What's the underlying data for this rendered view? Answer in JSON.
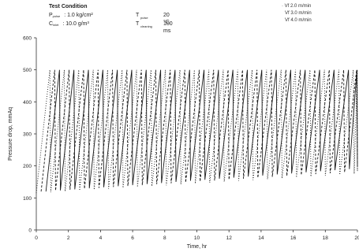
{
  "test_condition": {
    "title": "Test Condition",
    "rows": [
      {
        "sym1": "P",
        "sub1": "pulse",
        "val1": ": 1.0 kg/cm²",
        "sym2": "T",
        "sub2": "pulse",
        "val2": "20 °C"
      },
      {
        "sym1": "C",
        "sub1": "inlet",
        "val1": ": 10.0 g/m³",
        "sym2": "T",
        "sub2": "cleaning",
        "val2": "100 ms"
      }
    ]
  },
  "chart_data": {
    "type": "line",
    "xlabel": "Time, hr",
    "ylabel": "Pressure drop, mmAq",
    "xlim": [
      0,
      20
    ],
    "ylim": [
      0,
      600
    ],
    "xticks": [
      "0",
      "2",
      "4",
      "6",
      "8",
      "10",
      "12",
      "14",
      "16",
      "18",
      "20"
    ],
    "yticks": [
      "0",
      "100",
      "200",
      "300",
      "400",
      "500",
      "600"
    ],
    "grid": false,
    "legend_position": "top-right",
    "series": [
      {
        "name": "Vf 2.0 m/min",
        "style": "dotted",
        "peak": 500,
        "base_start": 115,
        "base_end": 175,
        "cycle_times": [
          0,
          0.9,
          1.8,
          2.7,
          3.6,
          4.5,
          5.4,
          6.3,
          7.2,
          8.1,
          9.0,
          9.9,
          10.8,
          11.7,
          12.6,
          13.5,
          14.4,
          15.3,
          16.2,
          17.1,
          18.0,
          18.9,
          19.8
        ]
      },
      {
        "name": "Vf 3.0 m/min",
        "style": "dashed",
        "peak": 500,
        "base_start": 120,
        "base_end": 180,
        "cycle_times": [
          0.3,
          1.2,
          2.1,
          3.0,
          3.9,
          4.8,
          5.7,
          6.6,
          7.5,
          8.4,
          9.3,
          10.2,
          11.1,
          12.0,
          12.9,
          13.8,
          14.7,
          15.6,
          16.5,
          17.4,
          18.3,
          19.2
        ]
      },
      {
        "name": "Vf 4.0 m/min",
        "style": "solid",
        "peak": 500,
        "base_start": 120,
        "base_end": 190,
        "cycle_times": [
          0.6,
          1.5,
          2.4,
          3.3,
          4.2,
          5.1,
          6.0,
          6.9,
          7.8,
          8.7,
          9.6,
          10.5,
          11.4,
          12.3,
          13.2,
          14.1,
          15.0,
          15.9,
          16.8,
          17.7,
          18.6,
          19.5
        ]
      }
    ]
  }
}
